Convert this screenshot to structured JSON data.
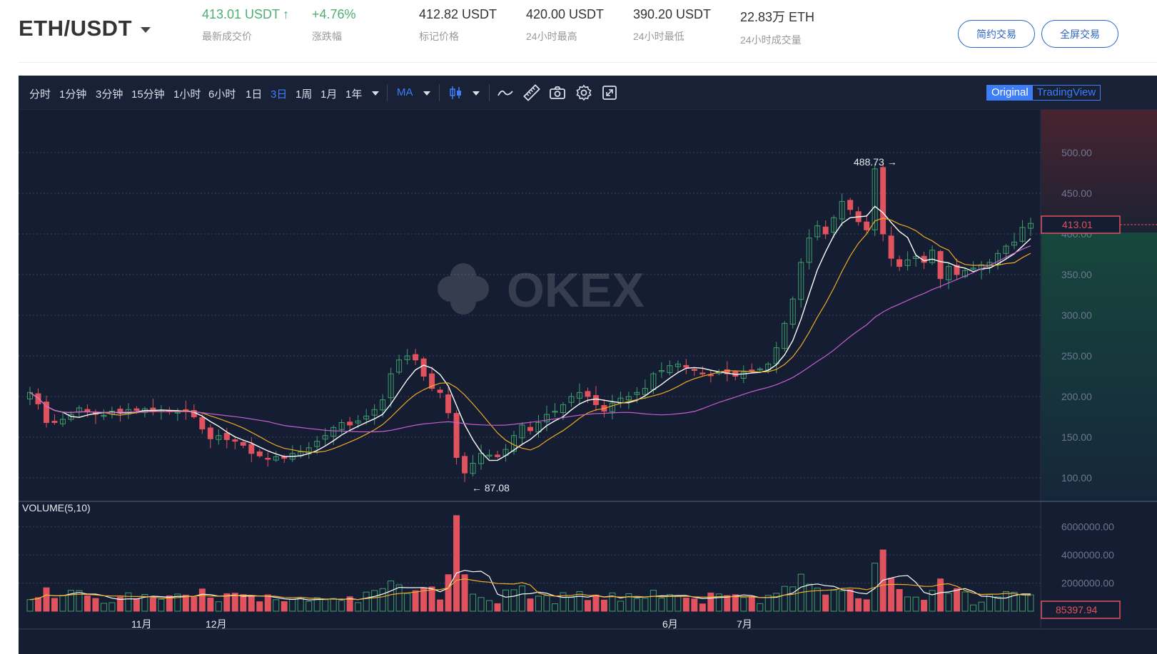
{
  "header": {
    "pair": "ETH/USDT",
    "last_price": {
      "value": "413.01 USDT",
      "label": "最新成交价"
    },
    "change": {
      "value": "+4.76%",
      "label": "涨跌幅"
    },
    "mark_price": {
      "value": "412.82 USDT",
      "label": "标记价格"
    },
    "high_24h": {
      "value": "420.00 USDT",
      "label": "24小时最高"
    },
    "low_24h": {
      "value": "390.20 USDT",
      "label": "24小时最低"
    },
    "volume_24h": {
      "value": "22.83万 ETH",
      "label": "24小时成交量"
    },
    "btn_simple": "简约交易",
    "btn_full": "全屏交易"
  },
  "toolbar": {
    "intervals": [
      "分时",
      "1分钟",
      "3分钟",
      "15分钟",
      "1小时",
      "6小时",
      "1日",
      "3日",
      "1周",
      "1月",
      "1年"
    ],
    "active_interval": "3日",
    "indicator": "MA",
    "view_original": "Original",
    "view_tradingview": "TradingView",
    "icons": [
      "candlestick-icon",
      "line-draw-icon",
      "ruler-icon",
      "camera-icon",
      "settings-icon",
      "fullscreen-icon"
    ]
  },
  "watermark": "OKEX",
  "colors": {
    "up": "#3f9e6b",
    "down": "#e0535e",
    "ma_white": "#ffffff",
    "ma_orange": "#f0a928",
    "ma_magenta": "#c55fd0",
    "accent": "#3d7df5",
    "panel_bg": "#141d31"
  },
  "chart_data": {
    "type": "candlestick",
    "price_axis_ticks": [
      "500.00",
      "450.00",
      "400.00",
      "350.00",
      "300.00",
      "250.00",
      "200.00",
      "150.00",
      "100.00"
    ],
    "ylim": [
      75,
      545
    ],
    "current_price": "413.01",
    "max_marker": "488.73",
    "min_marker": "87.08",
    "time_axis_labels": [
      "11月",
      "12月",
      "6月",
      "7月"
    ],
    "volume_label": "VOLUME(5,10)",
    "volume_axis_ticks": [
      "6000000.00",
      "4000000.00",
      "2000000.00"
    ],
    "volume_ylim": [
      0,
      7000000
    ],
    "current_volume": "85397.94",
    "candles_approx_close": [
      205,
      191,
      168,
      168,
      172,
      178,
      186,
      182,
      178,
      177,
      182,
      180,
      184,
      183,
      185,
      182,
      183,
      182,
      181,
      182,
      175,
      160,
      148,
      152,
      147,
      145,
      140,
      130,
      127,
      124,
      126,
      124,
      130,
      132,
      137,
      145,
      152,
      162,
      168,
      165,
      170,
      176,
      184,
      196,
      228,
      245,
      250,
      245,
      225,
      210,
      205,
      180,
      125,
      106,
      118,
      130,
      128,
      126,
      135,
      152,
      165,
      158,
      168,
      178,
      182,
      190,
      200,
      205,
      200,
      190,
      182,
      192,
      198,
      200,
      205,
      210,
      228,
      232,
      238,
      240,
      236,
      232,
      228,
      226,
      230,
      228,
      225,
      230,
      232,
      234,
      240,
      260,
      290,
      320,
      365,
      395,
      410,
      400,
      420,
      440,
      430,
      415,
      405,
      480,
      400,
      370,
      360,
      368,
      372,
      365,
      380,
      345,
      360,
      350,
      355,
      358,
      362,
      365,
      376,
      385,
      390,
      408,
      413
    ]
  }
}
